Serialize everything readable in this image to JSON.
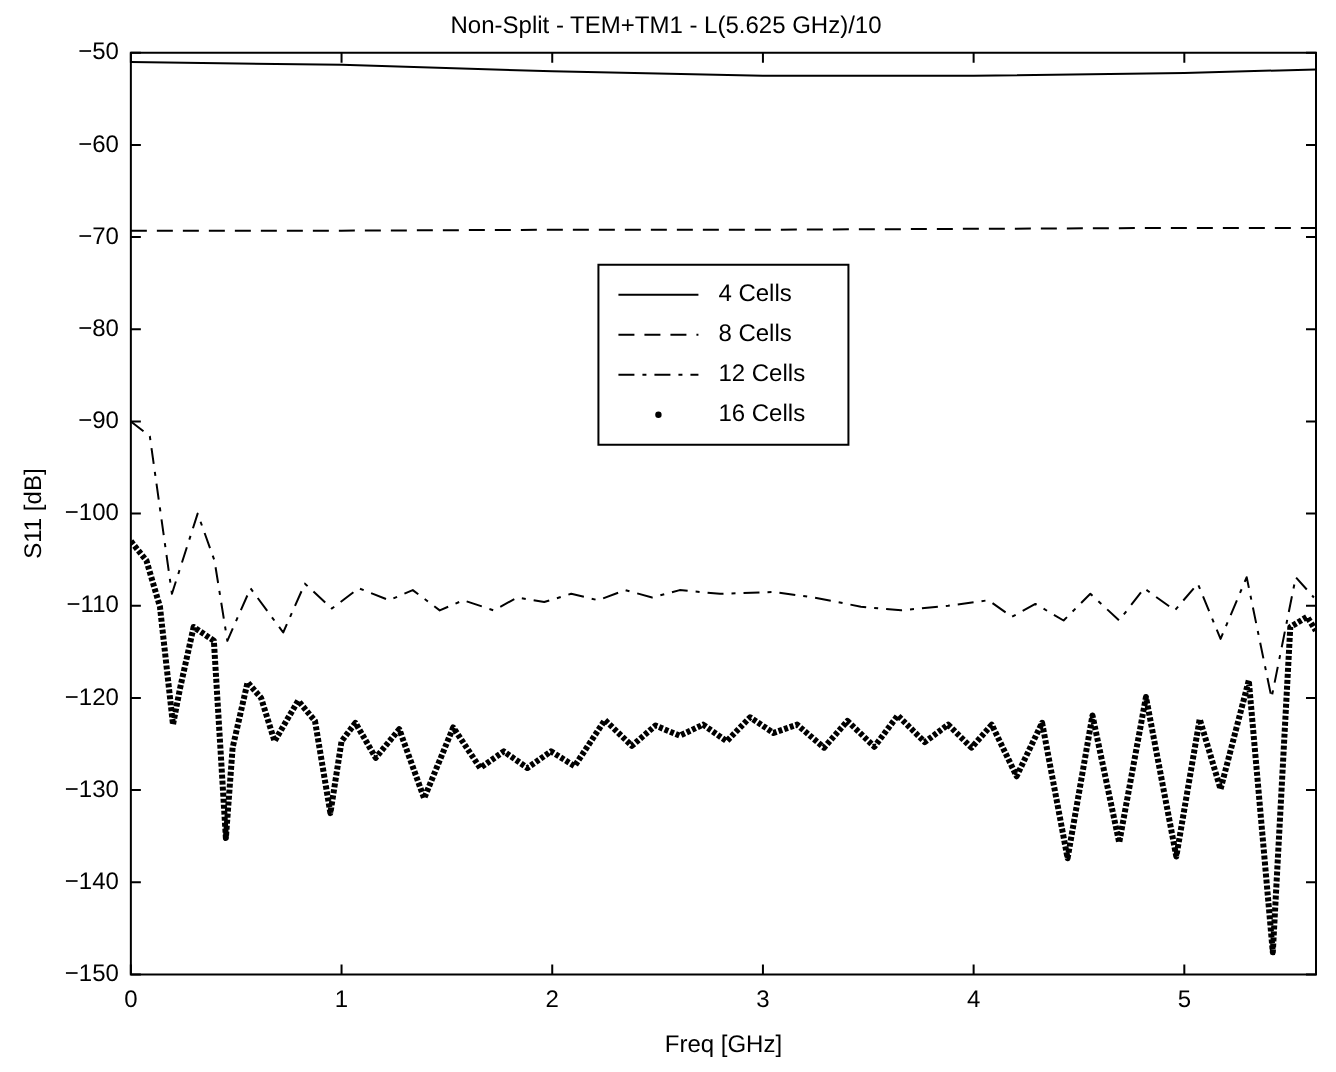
{
  "chart_data": {
    "type": "line",
    "title": "Non-Split - TEM+TM1 - L(5.625 GHz)/10",
    "xlabel": "Freq [GHz]",
    "ylabel": "S11 [dB]",
    "xlim": [
      0,
      5.625
    ],
    "xticks": [
      0,
      1,
      2,
      3,
      4,
      5
    ],
    "ylim": [
      -150,
      -50
    ],
    "yticks": [
      -150,
      -140,
      -130,
      -120,
      -110,
      -100,
      -90,
      -80,
      -70,
      -60,
      -50
    ],
    "grid": false,
    "legend": "center",
    "marker": "none",
    "series": [
      {
        "name": "4 Cells",
        "color": "#000000",
        "line_style": "solid",
        "x": [
          0,
          1,
          2,
          3,
          4,
          5,
          5.625
        ],
        "values": [
          -51,
          -51.3,
          -52,
          -52.5,
          -52.5,
          -52.2,
          -51.8
        ]
      },
      {
        "name": "8 Cells",
        "color": "#000000",
        "line_style": "dashed",
        "x": [
          0,
          1,
          2,
          3,
          4,
          5,
          5.625
        ],
        "values": [
          -69.3,
          -69.3,
          -69.2,
          -69.2,
          -69.1,
          -69,
          -69
        ]
      },
      {
        "name": "12 Cells",
        "color": "#000000",
        "line_style": "dashdot",
        "x": [
          0,
          0.09,
          0.195,
          0.317,
          0.397,
          0.458,
          0.568,
          0.723,
          0.826,
          0.954,
          1.082,
          1.226,
          1.338,
          1.466,
          1.578,
          1.722,
          1.834,
          1.962,
          2.09,
          2.218,
          2.346,
          2.474,
          2.605,
          2.796,
          3.05,
          3.242,
          3.465,
          3.656,
          3.879,
          4.07,
          4.182,
          4.293,
          4.427,
          4.554,
          4.691,
          4.809,
          4.955,
          5.064,
          5.172,
          5.296,
          5.414,
          5.529,
          5.615
        ],
        "values": [
          -90,
          -91.6,
          -108.7,
          -100,
          -105.1,
          -113.8,
          -108.1,
          -112.9,
          -107.6,
          -110.3,
          -108.1,
          -109.4,
          -108.3,
          -110.5,
          -109.4,
          -110.5,
          -109.1,
          -109.6,
          -108.7,
          -109.4,
          -108.3,
          -109.1,
          -108.3,
          -108.7,
          -108.5,
          -109.1,
          -110.1,
          -110.5,
          -110,
          -109.4,
          -111.2,
          -109.8,
          -111.6,
          -108.7,
          -111.6,
          -108.1,
          -110.5,
          -107.6,
          -113.6,
          -106.9,
          -120,
          -106.9,
          -109.1
        ]
      },
      {
        "name": "16 Cells",
        "color": "#000000",
        "line_style": "dotted",
        "x": [
          0,
          0.074,
          0.138,
          0.2,
          0.234,
          0.298,
          0.394,
          0.451,
          0.483,
          0.554,
          0.618,
          0.682,
          0.794,
          0.874,
          0.947,
          1.0,
          1.066,
          1.162,
          1.274,
          1.392,
          1.53,
          1.658,
          1.77,
          1.882,
          1.994,
          2.106,
          2.25,
          2.378,
          2.49,
          2.605,
          2.716,
          2.828,
          2.939,
          3.05,
          3.162,
          3.29,
          3.401,
          3.529,
          3.64,
          3.768,
          3.879,
          3.99,
          4.086,
          4.204,
          4.325,
          4.446,
          4.564,
          4.691,
          4.818,
          4.962,
          5.073,
          5.172,
          5.306,
          5.42,
          5.503,
          5.583,
          5.624
        ],
        "values": [
          -103,
          -105.1,
          -110.1,
          -122.9,
          -118.9,
          -112.3,
          -113.8,
          -135.2,
          -125.4,
          -118.3,
          -120,
          -124.7,
          -120.3,
          -122.5,
          -132.5,
          -124.7,
          -122.7,
          -126.5,
          -123.4,
          -130.9,
          -123.2,
          -127.6,
          -125.8,
          -127.6,
          -125.8,
          -127.4,
          -122.4,
          -125.2,
          -123,
          -124.1,
          -122.9,
          -124.7,
          -122.1,
          -123.8,
          -122.9,
          -125.4,
          -122.5,
          -125.3,
          -121.9,
          -124.8,
          -122.9,
          -125.4,
          -122.9,
          -128.5,
          -122.7,
          -137.4,
          -121.9,
          -135.7,
          -119.9,
          -137.2,
          -122.3,
          -129.9,
          -118.1,
          -147.6,
          -112.3,
          -111.2,
          -112.7
        ]
      }
    ]
  }
}
